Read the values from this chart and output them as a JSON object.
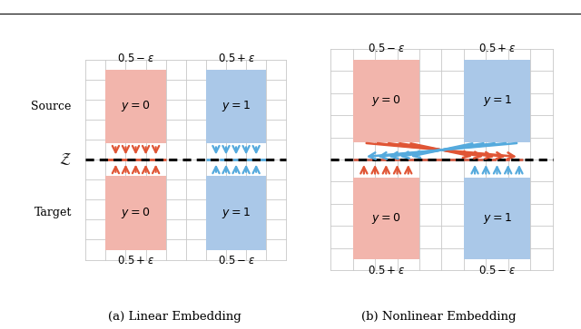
{
  "fig_width": 6.4,
  "fig_height": 3.63,
  "dpi": 100,
  "bg_color": "#ffffff",
  "grid_color": "#c8c8c8",
  "red_fill": "#f2b5ac",
  "blue_fill": "#aac8e8",
  "red_arrow": "#e05535",
  "blue_arrow": "#55aadd",
  "caption_a": "(a) Linear Embedding",
  "caption_b": "(b) Nonlinear Embedding",
  "label_source": "Source",
  "label_target": "Target",
  "label_Z": "$\\mathcal{Z}$",
  "top_label_left": "$0.5 - \\epsilon$",
  "top_label_right": "$0.5 + \\epsilon$",
  "bot_label_left": "$0.5 + \\epsilon$",
  "bot_label_right": "$0.5 - \\epsilon$",
  "y0_label": "$y = 0$",
  "y1_label": "$y = 1$"
}
